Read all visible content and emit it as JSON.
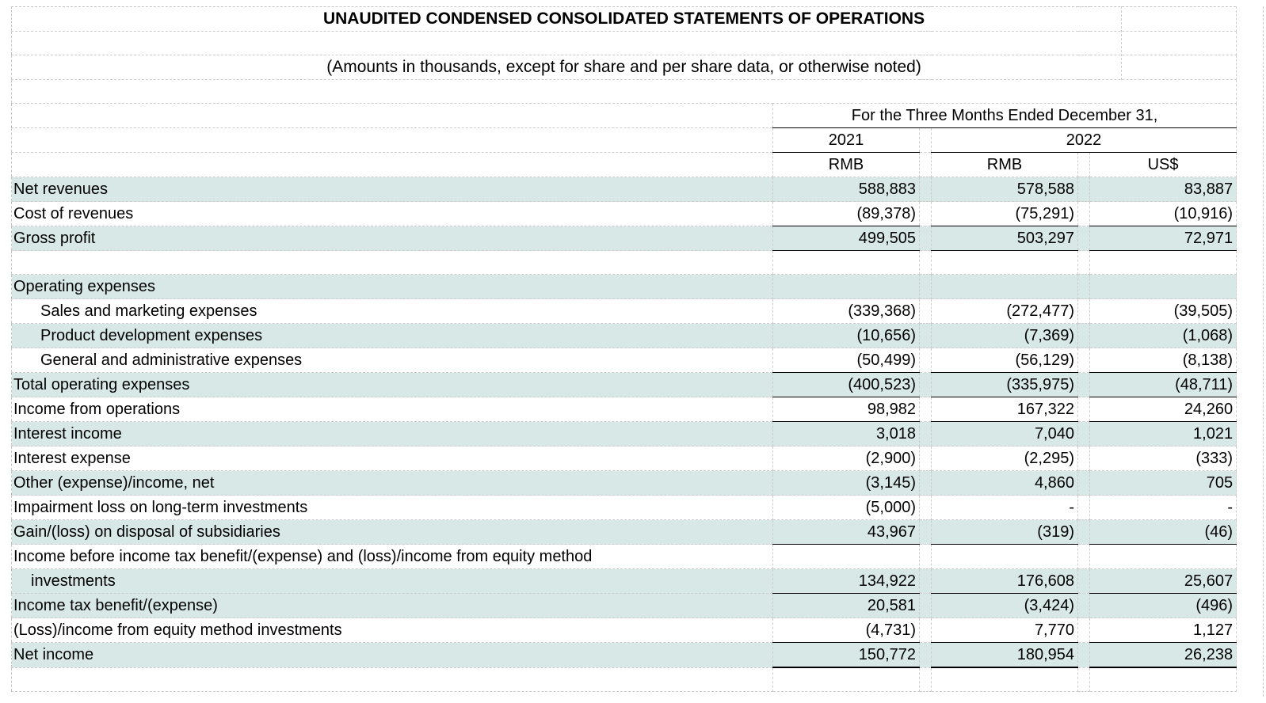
{
  "title": "UNAUDITED CONDENSED CONSOLIDATED STATEMENTS OF OPERATIONS",
  "subtitle": "(Amounts in thousands, except for share and per share data, or otherwise noted)",
  "table": {
    "period_header": "For the Three Months Ended December 31,",
    "year_2021": "2021",
    "year_2022": "2022",
    "currency_labels": [
      "RMB",
      "RMB",
      "US$"
    ],
    "rows": [
      {
        "label": "Net revenues",
        "indent": 0,
        "values": [
          "588,883",
          "578,588",
          "83,887"
        ],
        "highlight": true,
        "line_below": false
      },
      {
        "label": "Cost of revenues",
        "indent": 0,
        "values": [
          "(89,378)",
          "(75,291)",
          "(10,916)"
        ],
        "highlight": false,
        "line_below": true
      },
      {
        "label": "Gross profit",
        "indent": 0,
        "values": [
          "499,505",
          "503,297",
          "72,971"
        ],
        "highlight": true,
        "line_below": true
      },
      {
        "label": "",
        "indent": 0,
        "values": [
          "",
          "",
          ""
        ],
        "highlight": false,
        "line_below": false
      },
      {
        "label": "Operating expenses",
        "indent": 0,
        "values": [
          "",
          "",
          ""
        ],
        "highlight": true,
        "line_below": false
      },
      {
        "label": "Sales and marketing expenses",
        "indent": 1,
        "values": [
          "(339,368)",
          "(272,477)",
          "(39,505)"
        ],
        "highlight": false,
        "line_below": false
      },
      {
        "label": "Product development expenses",
        "indent": 1,
        "values": [
          "(10,656)",
          "(7,369)",
          "(1,068)"
        ],
        "highlight": true,
        "line_below": false
      },
      {
        "label": "General and administrative expenses",
        "indent": 1,
        "values": [
          "(50,499)",
          "(56,129)",
          "(8,138)"
        ],
        "highlight": false,
        "line_below": true
      },
      {
        "label": "Total operating expenses",
        "indent": 0,
        "values": [
          "(400,523)",
          "(335,975)",
          "(48,711)"
        ],
        "highlight": true,
        "line_below": true
      },
      {
        "label": "Income from operations",
        "indent": 0,
        "values": [
          "98,982",
          "167,322",
          "24,260"
        ],
        "highlight": false,
        "line_below": true
      },
      {
        "label": "Interest income",
        "indent": 0,
        "values": [
          "3,018",
          "7,040",
          "1,021"
        ],
        "highlight": true,
        "line_below": false
      },
      {
        "label": "Interest expense",
        "indent": 0,
        "values": [
          "(2,900)",
          "(2,295)",
          "(333)"
        ],
        "highlight": false,
        "line_below": false
      },
      {
        "label": "Other (expense)/income, net",
        "indent": 0,
        "values": [
          "(3,145)",
          "4,860",
          "705"
        ],
        "highlight": true,
        "line_below": false
      },
      {
        "label": "Impairment loss on long-term investments",
        "indent": 0,
        "values": [
          "(5,000)",
          "-",
          "-"
        ],
        "highlight": false,
        "line_below": false
      },
      {
        "label": "Gain/(loss) on disposal of subsidiaries",
        "indent": 0,
        "values": [
          "43,967",
          "(319)",
          "(46)"
        ],
        "highlight": true,
        "line_below": true
      },
      {
        "label": "Income before income tax benefit/(expense) and (loss)/income from equity method",
        "indent": 0,
        "values": [
          "",
          "",
          ""
        ],
        "highlight": false,
        "line_below": false
      },
      {
        "label": "investments",
        "indent": 2,
        "values": [
          "134,922",
          "176,608",
          "25,607"
        ],
        "highlight": true,
        "line_below": true
      },
      {
        "label": "Income tax benefit/(expense)",
        "indent": 0,
        "values": [
          "20,581",
          "(3,424)",
          "(496)"
        ],
        "highlight": true,
        "line_below": false
      },
      {
        "label": "(Loss)/income from equity method investments",
        "indent": 0,
        "values": [
          "(4,731)",
          "7,770",
          "1,127"
        ],
        "highlight": false,
        "line_below": true
      },
      {
        "label": "Net income",
        "indent": 0,
        "values": [
          "150,772",
          "180,954",
          "26,238"
        ],
        "highlight": true,
        "line_below": true,
        "final": true
      },
      {
        "label": "",
        "indent": 0,
        "values": [
          "",
          "",
          ""
        ],
        "highlight": false,
        "line_below": false
      }
    ]
  },
  "colors": {
    "row_highlight": "#d7e8e7",
    "grid_line": "#cccccc",
    "rule_line": "#000000"
  }
}
